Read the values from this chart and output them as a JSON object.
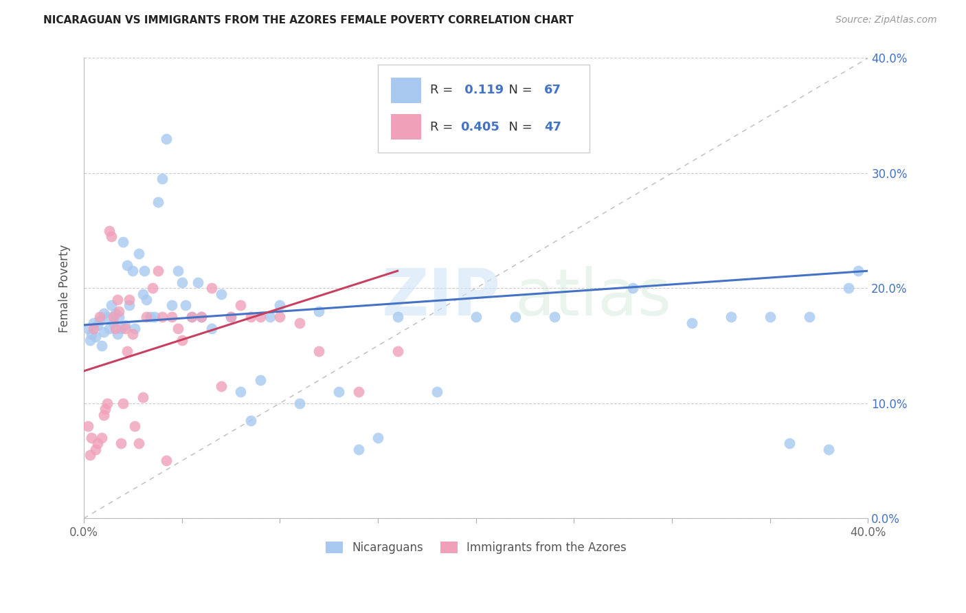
{
  "title": "NICARAGUAN VS IMMIGRANTS FROM THE AZORES FEMALE POVERTY CORRELATION CHART",
  "source": "Source: ZipAtlas.com",
  "ylabel": "Female Poverty",
  "xmin": 0.0,
  "xmax": 0.4,
  "ymin": 0.0,
  "ymax": 0.4,
  "legend_label1": "Nicaraguans",
  "legend_label2": "Immigrants from the Azores",
  "r1": "0.119",
  "n1": "67",
  "r2": "0.405",
  "n2": "47",
  "blue_color": "#A8C8F0",
  "pink_color": "#F0A0B8",
  "line_blue": "#4472C4",
  "line_pink": "#C84060",
  "diag_color": "#BBBBBB",
  "background": "#FFFFFF",
  "blue_scatter_x": [
    0.002,
    0.003,
    0.004,
    0.005,
    0.006,
    0.007,
    0.008,
    0.009,
    0.01,
    0.01,
    0.012,
    0.013,
    0.014,
    0.015,
    0.016,
    0.017,
    0.018,
    0.019,
    0.02,
    0.021,
    0.022,
    0.023,
    0.025,
    0.026,
    0.028,
    0.03,
    0.031,
    0.032,
    0.034,
    0.036,
    0.038,
    0.04,
    0.042,
    0.045,
    0.048,
    0.05,
    0.052,
    0.055,
    0.058,
    0.06,
    0.065,
    0.07,
    0.075,
    0.08,
    0.085,
    0.09,
    0.095,
    0.1,
    0.11,
    0.12,
    0.13,
    0.14,
    0.15,
    0.16,
    0.18,
    0.2,
    0.22,
    0.24,
    0.28,
    0.31,
    0.33,
    0.35,
    0.36,
    0.37,
    0.38,
    0.39,
    0.395
  ],
  "blue_scatter_y": [
    0.165,
    0.155,
    0.16,
    0.17,
    0.158,
    0.168,
    0.172,
    0.15,
    0.162,
    0.178,
    0.175,
    0.165,
    0.185,
    0.17,
    0.178,
    0.16,
    0.175,
    0.165,
    0.24,
    0.168,
    0.22,
    0.185,
    0.215,
    0.165,
    0.23,
    0.195,
    0.215,
    0.19,
    0.175,
    0.175,
    0.275,
    0.295,
    0.33,
    0.185,
    0.215,
    0.205,
    0.185,
    0.175,
    0.205,
    0.175,
    0.165,
    0.195,
    0.175,
    0.11,
    0.085,
    0.12,
    0.175,
    0.185,
    0.1,
    0.18,
    0.11,
    0.06,
    0.07,
    0.175,
    0.11,
    0.175,
    0.175,
    0.175,
    0.2,
    0.17,
    0.175,
    0.175,
    0.065,
    0.175,
    0.06,
    0.2,
    0.215
  ],
  "pink_scatter_x": [
    0.002,
    0.003,
    0.004,
    0.005,
    0.006,
    0.007,
    0.008,
    0.009,
    0.01,
    0.011,
    0.012,
    0.013,
    0.014,
    0.015,
    0.016,
    0.017,
    0.018,
    0.019,
    0.02,
    0.021,
    0.022,
    0.023,
    0.025,
    0.026,
    0.028,
    0.03,
    0.032,
    0.035,
    0.038,
    0.04,
    0.042,
    0.045,
    0.048,
    0.05,
    0.055,
    0.06,
    0.065,
    0.07,
    0.075,
    0.08,
    0.085,
    0.09,
    0.1,
    0.11,
    0.12,
    0.14,
    0.16
  ],
  "pink_scatter_y": [
    0.08,
    0.055,
    0.07,
    0.165,
    0.06,
    0.065,
    0.175,
    0.07,
    0.09,
    0.095,
    0.1,
    0.25,
    0.245,
    0.175,
    0.165,
    0.19,
    0.18,
    0.065,
    0.1,
    0.165,
    0.145,
    0.19,
    0.16,
    0.08,
    0.065,
    0.105,
    0.175,
    0.2,
    0.215,
    0.175,
    0.05,
    0.175,
    0.165,
    0.155,
    0.175,
    0.175,
    0.2,
    0.115,
    0.175,
    0.185,
    0.175,
    0.175,
    0.175,
    0.17,
    0.145,
    0.11,
    0.145
  ]
}
